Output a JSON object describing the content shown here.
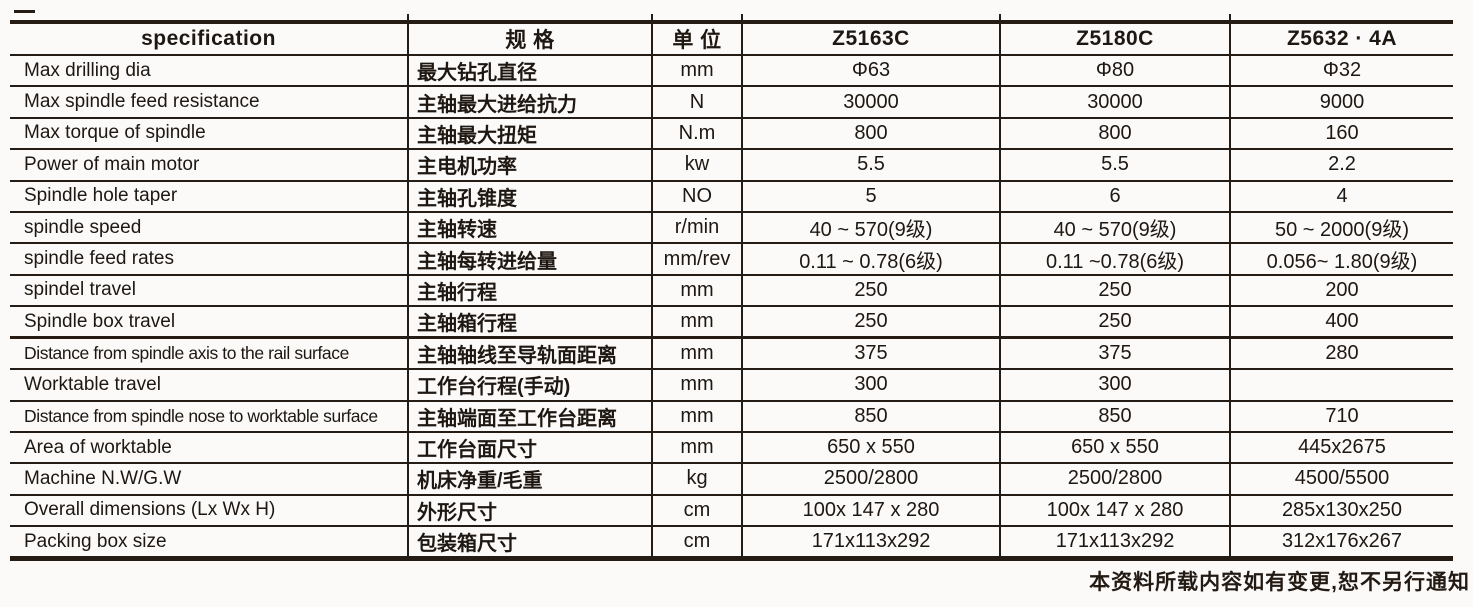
{
  "table": {
    "headers": [
      "specification",
      "规 格",
      "单 位",
      "Z5163C",
      "Z5180C",
      "Z5632 · 4A"
    ],
    "rows": [
      {
        "en": "Max drilling dia",
        "cn": "最大钻孔直径",
        "unit": "mm",
        "v1": "Φ63",
        "v2": "Φ80",
        "v3": "Φ32"
      },
      {
        "en": "Max spindle feed resistance",
        "cn": "主轴最大进给抗力",
        "unit": "N",
        "v1": "30000",
        "v2": "30000",
        "v3": "9000"
      },
      {
        "en": "Max torque of spindle",
        "cn": "主轴最大扭矩",
        "unit": "N.m",
        "v1": "800",
        "v2": "800",
        "v3": "160"
      },
      {
        "en": "Power of main motor",
        "cn": "主电机功率",
        "unit": "kw",
        "v1": "5.5",
        "v2": "5.5",
        "v3": "2.2"
      },
      {
        "en": "Spindle hole taper",
        "cn": "主轴孔锥度",
        "unit": "NO",
        "v1": "5",
        "v2": "6",
        "v3": "4"
      },
      {
        "en": "spindle speed",
        "cn": "主轴转速",
        "unit": "r/min",
        "v1": "40 ~ 570(9级)",
        "v2": "40 ~ 570(9级)",
        "v3": "50 ~ 2000(9级)"
      },
      {
        "en": "spindle feed rates",
        "cn": "主轴每转进给量",
        "unit": "mm/rev",
        "v1": "0.11 ~ 0.78(6级)",
        "v2": "0.11 ~0.78(6级)",
        "v3": "0.056~ 1.80(9级)"
      },
      {
        "en": "spindel travel",
        "cn": "主轴行程",
        "unit": "mm",
        "v1": "250",
        "v2": "250",
        "v3": "200"
      },
      {
        "en": "Spindle box travel",
        "cn": "主轴箱行程",
        "unit": "mm",
        "v1": "250",
        "v2": "250",
        "v3": "400"
      },
      {
        "en": "Distance from spindle axis to the rail surface",
        "cn": "主轴轴线至导轨面距离",
        "unit": "mm",
        "v1": "375",
        "v2": "375",
        "v3": "280"
      },
      {
        "en": "Worktable travel",
        "cn": "工作台行程(手动)",
        "unit": "mm",
        "v1": "300",
        "v2": "300",
        "v3": ""
      },
      {
        "en": "Distance from spindle nose to worktable surface",
        "cn": "主轴端面至工作台距离",
        "unit": "mm",
        "v1": "850",
        "v2": "850",
        "v3": "710"
      },
      {
        "en": "Area of worktable",
        "cn": "工作台面尺寸",
        "unit": "mm",
        "v1": "650 x 550",
        "v2": "650 x 550",
        "v3": "445x2675"
      },
      {
        "en": "Machine N.W/G.W",
        "cn": "机床净重/毛重",
        "unit": "kg",
        "v1": "2500/2800",
        "v2": "2500/2800",
        "v3": "4500/5500"
      },
      {
        "en": "Overall dimensions (Lx Wx H)",
        "cn": "外形尺寸",
        "unit": "cm",
        "v1": "100x 147 x 280",
        "v2": "100x 147 x 280",
        "v3": "285x130x250"
      },
      {
        "en": "Packing box size",
        "cn": "包装箱尺寸",
        "unit": "cm",
        "v1": "171x113x292",
        "v2": "171x113x292",
        "v3": "312x176x267"
      }
    ],
    "footer_note": "本资料所载内容如有变更,恕不另行通知"
  }
}
